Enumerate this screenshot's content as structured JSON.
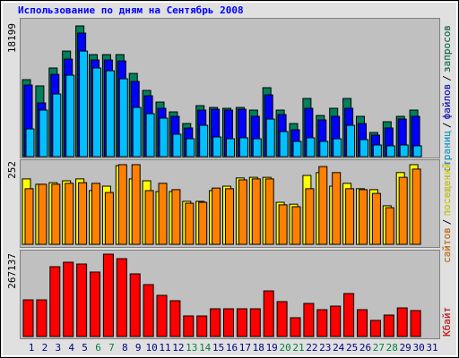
{
  "chart_data": [
    {
      "type": "bar",
      "title": "Использование по дням на Сентябрь 2008",
      "ylim": [
        0,
        18199
      ],
      "yticks": [
        18199
      ],
      "separator": "/",
      "series": [
        {
          "name": "запросов",
          "color": "#00805c",
          "values": [
            10720,
            9850,
            12340,
            14700,
            18199,
            14210,
            14210,
            14210,
            11590,
            9220,
            7600,
            6230,
            4610,
            7100,
            6850,
            6730,
            6850,
            6480,
            9600,
            6480,
            4610,
            8100,
            5730,
            6730,
            8100,
            5610,
            3360,
            4860,
            5610,
            6480,
            0
          ]
        },
        {
          "name": "файлов",
          "color": "#0000ff",
          "values": [
            9970,
            7480,
            11460,
            13580,
            17200,
            13460,
            13460,
            13330,
            10470,
            8470,
            6730,
            5610,
            3990,
            6480,
            6600,
            6480,
            6600,
            5610,
            8600,
            5860,
            3740,
            6730,
            5110,
            5610,
            6730,
            4610,
            2990,
            3990,
            5230,
            5610,
            0
          ]
        },
        {
          "name": "страниц",
          "color": "#00c0ff",
          "values": [
            3860,
            6480,
            8720,
            11340,
            14700,
            12340,
            11960,
            10840,
            6850,
            5980,
            5360,
            3120,
            2490,
            4360,
            2740,
            2490,
            2620,
            2490,
            5230,
            3490,
            2120,
            2620,
            2120,
            2490,
            4360,
            2370,
            1620,
            1500,
            1620,
            1500,
            0
          ]
        }
      ]
    },
    {
      "type": "bar",
      "ylim": [
        0,
        252
      ],
      "yticks": [
        252
      ],
      "separator": "/",
      "series": [
        {
          "name": "посещений",
          "color": "#ffff00",
          "values": [
            207,
            190,
            195,
            201,
            207,
            170,
            184,
            249,
            207,
            201,
            167,
            167,
            136,
            136,
            170,
            184,
            210,
            212,
            212,
            133,
            127,
            218,
            227,
            184,
            193,
            176,
            173,
            122,
            227,
            252,
            0
          ]
        },
        {
          "name": "сайтов",
          "color": "#ff8000",
          "values": [
            176,
            190,
            190,
            193,
            195,
            193,
            164,
            252,
            252,
            170,
            193,
            173,
            130,
            133,
            178,
            176,
            204,
            207,
            207,
            125,
            119,
            176,
            246,
            227,
            176,
            173,
            161,
            116,
            212,
            238,
            0
          ]
        }
      ]
    },
    {
      "type": "bar",
      "ylim": [
        0,
        267137
      ],
      "yticks": [
        267137
      ],
      "categories": [
        1,
        2,
        3,
        4,
        5,
        6,
        7,
        8,
        9,
        10,
        11,
        12,
        13,
        14,
        15,
        16,
        17,
        18,
        19,
        20,
        21,
        22,
        23,
        24,
        25,
        26,
        27,
        28,
        29,
        30,
        31
      ],
      "category_colors": [
        "#000080",
        "#000080",
        "#000080",
        "#000080",
        "#000080",
        "#008040",
        "#008040",
        "#000080",
        "#000080",
        "#000080",
        "#000080",
        "#000080",
        "#008040",
        "#008040",
        "#000080",
        "#000080",
        "#000080",
        "#000080",
        "#000080",
        "#008040",
        "#008040",
        "#000080",
        "#000080",
        "#000080",
        "#000080",
        "#000080",
        "#008040",
        "#008040",
        "#000080",
        "#000080",
        "#000080"
      ],
      "series": [
        {
          "name": "Кбайт",
          "color": "#ff0000",
          "values": [
            119000,
            119000,
            226500,
            241000,
            235200,
            209100,
            267137,
            252600,
            203300,
            168400,
            133600,
            116200,
            66800,
            66800,
            90000,
            90000,
            90000,
            90000,
            148100,
            113300,
            61000,
            107400,
            87100,
            98700,
            139400,
            87100,
            52300,
            69700,
            92900,
            84200,
            0
          ]
        }
      ]
    }
  ]
}
